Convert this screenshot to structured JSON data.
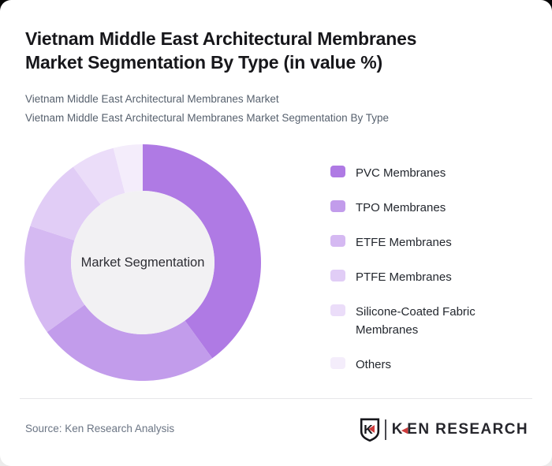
{
  "header": {
    "title": "Vietnam Middle East Architectural Membranes Market Segmentation By Type (in value %)",
    "subtitle_line1": "Vietnam Middle East Architectural Membranes Market",
    "subtitle_line2": "Vietnam Middle East Architectural Membranes Market Segmentation By Type"
  },
  "chart_data": {
    "type": "pie",
    "variant": "donut",
    "title": "Vietnam Middle East Architectural Membranes Market Segmentation By Type (in value %)",
    "center_label": "Market Segmentation",
    "legend_position": "right",
    "value_labels_shown": false,
    "direction": "clockwise",
    "start_angle_deg": 0,
    "inner_circle_color": "#f2f1f3",
    "segments": [
      {
        "label": "PVC Membranes",
        "value": 40,
        "color": "#af7ae4"
      },
      {
        "label": "TPO Membranes",
        "value": 25,
        "color": "#c29ceb"
      },
      {
        "label": "ETFE Membranes",
        "value": 15,
        "color": "#d5b9f2"
      },
      {
        "label": "PTFE Membranes",
        "value": 10,
        "color": "#e1cdf6"
      },
      {
        "label": "Silicone-Coated Fabric Membranes",
        "value": 6,
        "color": "#ebddf9"
      },
      {
        "label": "Others",
        "value": 4,
        "color": "#f4edfb"
      }
    ]
  },
  "footer": {
    "source": "Source: Ken Research Analysis",
    "logo": {
      "shield_letter": "K",
      "wordmark_k": "K",
      "wordmark_rest": "EN RESEARCH",
      "accent_color": "#ce3b3b",
      "text_color": "#26262c"
    }
  }
}
